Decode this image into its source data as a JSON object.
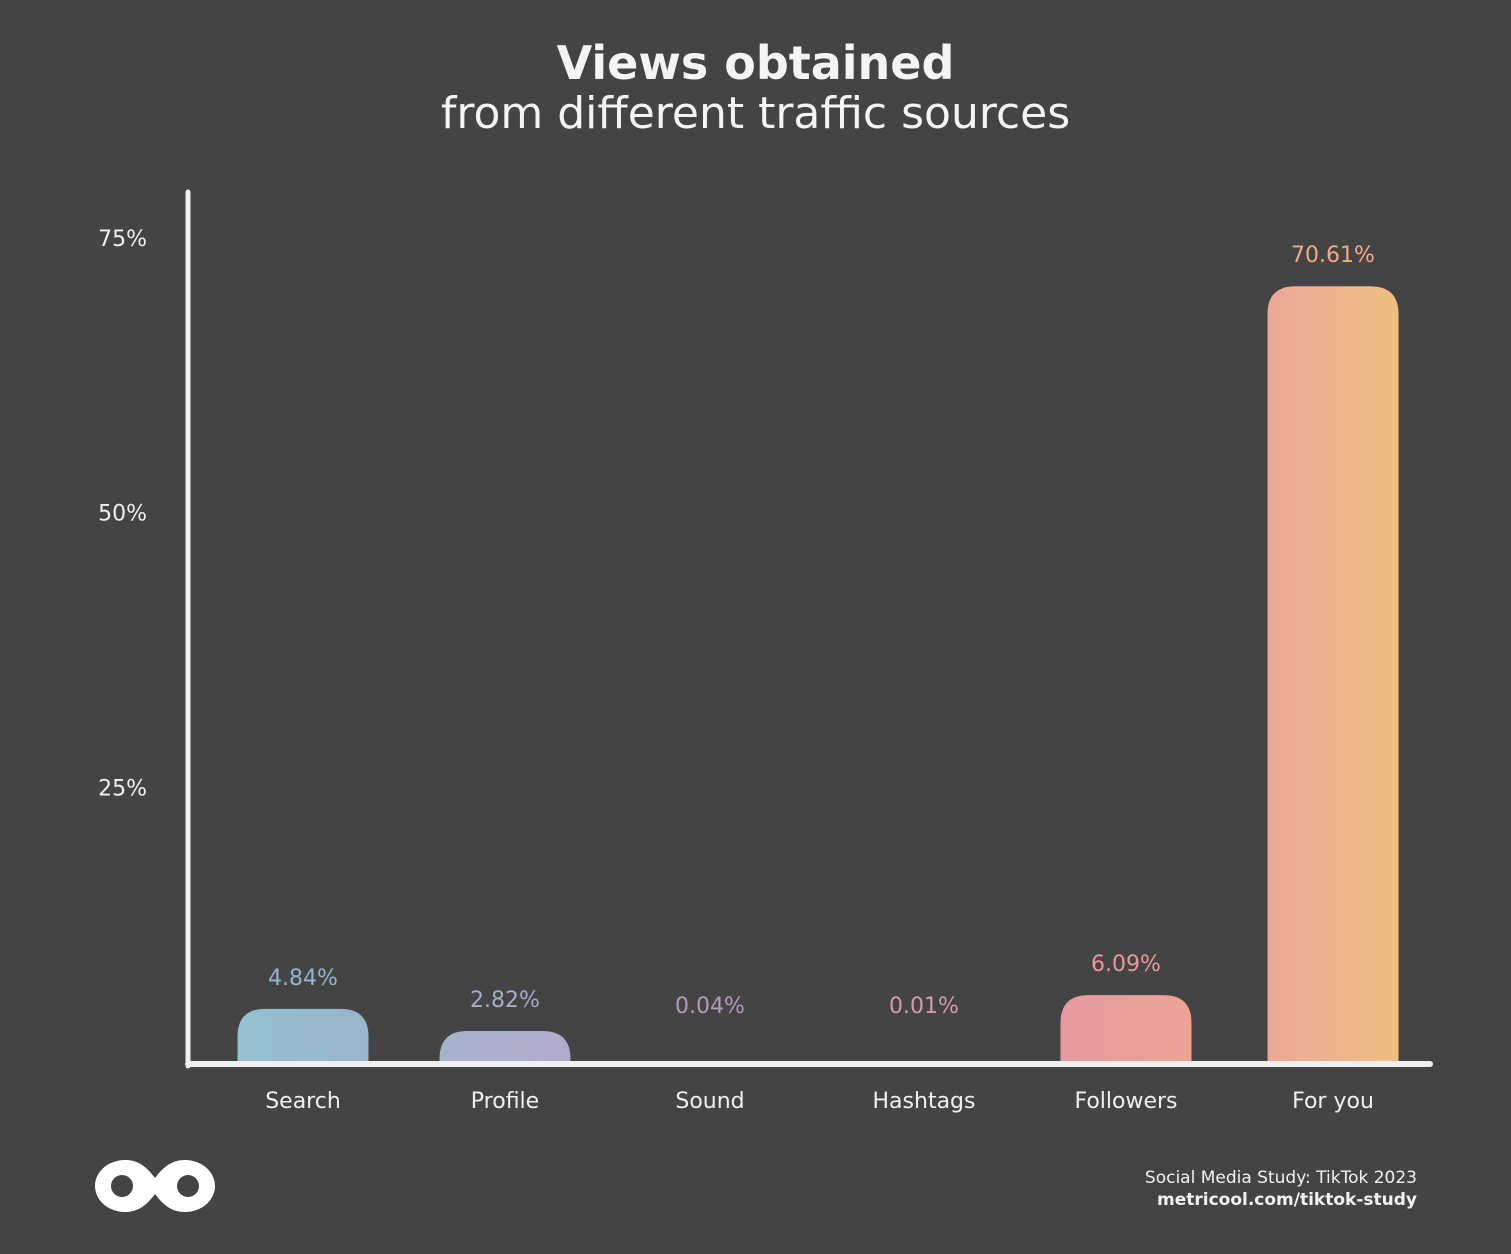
{
  "chart_data": {
    "type": "bar",
    "title": "Views obtained",
    "subtitle": "from different traffic sources",
    "categories": [
      "Search",
      "Profile",
      "Sound",
      "Hashtags",
      "Followers",
      "For you"
    ],
    "values": [
      4.84,
      2.82,
      0.04,
      0.01,
      6.09,
      70.61
    ],
    "data_labels": [
      "4.84%",
      "2.82%",
      "0.04%",
      "0.01%",
      "6.09%",
      "70.61%"
    ],
    "y_ticks": [
      25,
      50,
      75
    ],
    "y_tick_labels": [
      "25%",
      "50%",
      "75%"
    ],
    "ylim": [
      0,
      79
    ],
    "grid": false,
    "bar_colors": [
      [
        "#95c0d3",
        "#9ab4cb"
      ],
      [
        "#a6b3cc",
        "#b3aacb"
      ],
      [
        "#b59cc0",
        "#b59cc0"
      ],
      [
        "#d39cb0",
        "#d39cb0"
      ],
      [
        "#e69aa0",
        "#eba494"
      ],
      [
        "#eba898",
        "#f0bf80"
      ]
    ],
    "label_colors": [
      "#93b6cc",
      "#a3aec9",
      "#b49bbd",
      "#d69aae",
      "#e89a98",
      "#eeab86"
    ],
    "xlabel": "",
    "ylabel": ""
  },
  "footer": {
    "source": "Social Media Study: TikTok 2023",
    "url": "metricool.com/tiktok-study"
  },
  "logo": {
    "name": "metricool-logo"
  }
}
